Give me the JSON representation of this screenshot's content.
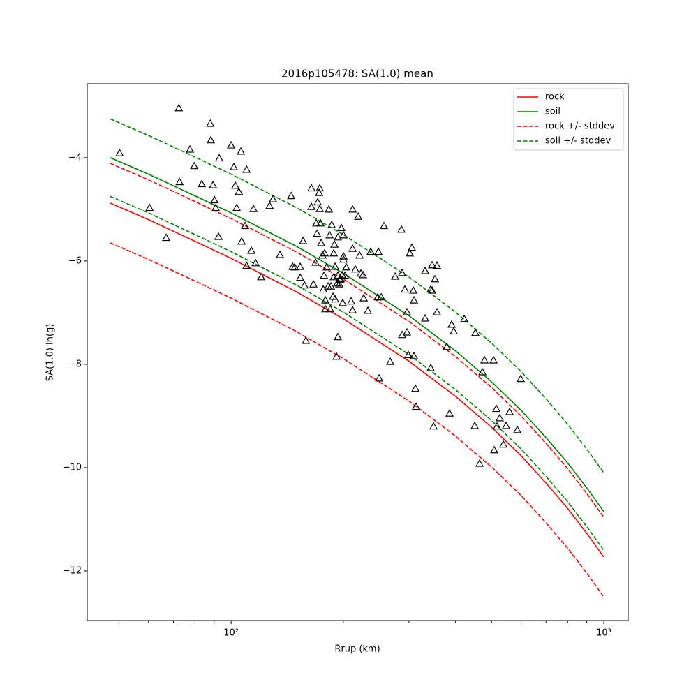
{
  "chart_data": {
    "type": "line",
    "title": "2016p105478: SA(1.0) mean",
    "xlabel": "Rrup (km)",
    "ylabel": "SA(1.0) ln(g)",
    "xscale": "log",
    "xlim": [
      41.1,
      1163
    ],
    "ylim": [
      -12.96,
      -2.57
    ],
    "xticks": [
      {
        "value": 100,
        "label": "10²"
      },
      {
        "value": 1000,
        "label": "10³"
      }
    ],
    "xminorticks": [
      50,
      60,
      70,
      80,
      90,
      200,
      300,
      400,
      500,
      600,
      700,
      800,
      900
    ],
    "yticks": [
      {
        "value": -12,
        "label": "−12"
      },
      {
        "value": -10,
        "label": "−10"
      },
      {
        "value": -8,
        "label": "−8"
      },
      {
        "value": -6,
        "label": "−6"
      },
      {
        "value": -4,
        "label": "−4"
      }
    ],
    "legend_loc": "upper right",
    "x": [
      47.4,
      60,
      80,
      100,
      150,
      200,
      300,
      400,
      500,
      600,
      700,
      800,
      900,
      1000
    ],
    "series": [
      {
        "name": "rock",
        "color": "#ff0000",
        "style": "solid",
        "values": [
          -4.88,
          -5.2,
          -5.62,
          -5.95,
          -6.6,
          -7.12,
          -7.94,
          -8.62,
          -9.22,
          -9.77,
          -10.3,
          -10.79,
          -11.27,
          -11.73
        ]
      },
      {
        "name": "soil",
        "color": "#008000",
        "style": "solid",
        "values": [
          -4.0,
          -4.32,
          -4.74,
          -5.07,
          -5.72,
          -6.24,
          -7.06,
          -7.74,
          -8.34,
          -8.89,
          -9.42,
          -9.91,
          -10.39,
          -10.85
        ]
      },
      {
        "name": "rock +/- stddev",
        "color": "#ff0000",
        "style": "dashed",
        "upper": [
          -4.11,
          -4.43,
          -4.85,
          -5.18,
          -5.83,
          -6.35,
          -7.17,
          -7.85,
          -8.45,
          -9.0,
          -9.53,
          -10.02,
          -10.5,
          -10.96
        ],
        "lower": [
          -5.65,
          -5.97,
          -6.39,
          -6.72,
          -7.37,
          -7.89,
          -8.71,
          -9.39,
          -9.99,
          -10.54,
          -11.07,
          -11.56,
          -12.04,
          -12.5
        ]
      },
      {
        "name": "soil +/- stddev",
        "color": "#008000",
        "style": "dashed",
        "upper": [
          -3.25,
          -3.57,
          -3.99,
          -4.32,
          -4.97,
          -5.49,
          -6.31,
          -6.99,
          -7.59,
          -8.14,
          -8.67,
          -9.16,
          -9.64,
          -10.1
        ],
        "lower": [
          -4.75,
          -5.07,
          -5.49,
          -5.82,
          -6.47,
          -6.99,
          -7.81,
          -8.49,
          -9.09,
          -9.64,
          -10.17,
          -10.66,
          -11.14,
          -11.6
        ]
      }
    ],
    "scatter": {
      "marker": "triangle",
      "color": "#000000",
      "x": [
        50.2,
        60.4,
        66.9,
        72.4,
        72.7,
        77.5,
        79.6,
        83.4,
        87.9,
        88.2,
        89.4,
        90.2,
        90.9,
        92.9,
        92.5,
        100,
        101.7,
        102.6,
        103.5,
        104.9,
        106.2,
        106.7,
        109.0,
        110.0,
        110.0,
        113.3,
        114.8,
        116.3,
        120.4,
        126.8,
        129.5,
        135.2,
        144.9,
        146.2,
        148.1,
        153.2,
        153.2,
        156.0,
        157.3,
        158.7,
        164.2,
        164.2,
        166.3,
        168.5,
        169.2,
        170.0,
        170.7,
        172.2,
        172.9,
        172.9,
        173.7,
        174.4,
        175.9,
        176.7,
        177.5,
        178.2,
        179.0,
        180.5,
        182.1,
        182.9,
        183.7,
        185.3,
        186.1,
        187.7,
        189.3,
        190.1,
        192.6,
        193.4,
        195.1,
        196.8,
        198.5,
        199.3,
        200.2,
        202.0,
        188.5,
        188.5,
        193.4,
        184.5,
        179.0,
        190.1,
        191.8,
        193.4,
        195.9,
        200.2,
        197.6,
        200.2,
        203.7,
        211.8,
        211.8,
        209.9,
        215.4,
        221.1,
        223.0,
        225.9,
        226.9,
        232.8,
        211.8,
        219.2,
        236.9,
        247.3,
        252.7,
        248.4,
        257.1,
        249.5,
        267.3,
        275.5,
        286.4,
        287.6,
        287.6,
        292.6,
        296.4,
        296.4,
        299.0,
        301.6,
        305.5,
        308.2,
        309.5,
        309.5,
        312.2,
        313.5,
        331.6,
        331.6,
        343.2,
        343.2,
        346.2,
        346.2,
        349.2,
        352.3,
        356.8,
        356.8,
        379.0,
        385.6,
        390.6,
        395.7,
        422.2,
        450.4,
        452.3,
        464.2,
        472.3,
        478.4,
        506.0,
        508.2,
        514.8,
        517.0,
        526.0,
        537.5,
        546.9,
        558.8,
        586.0,
        598.8
      ],
      "y": [
        -3.91,
        -4.97,
        -5.55,
        -3.04,
        -4.47,
        -3.84,
        -4.16,
        -4.51,
        -3.34,
        -3.66,
        -4.53,
        -4.82,
        -4.97,
        -4.01,
        -5.53,
        -3.76,
        -4.18,
        -4.54,
        -4.97,
        -4.66,
        -3.88,
        -5.62,
        -5.32,
        -4.23,
        -6.09,
        -5.8,
        -4.99,
        -6.04,
        -6.31,
        -4.93,
        -4.8,
        -5.88,
        -4.74,
        -6.11,
        -6.12,
        -6.11,
        -6.32,
        -5.61,
        -6.47,
        -7.54,
        -4.59,
        -4.95,
        -6.45,
        -6.03,
        -5.27,
        -5.47,
        -4.86,
        -4.68,
        -4.59,
        -4.99,
        -5.27,
        -5.65,
        -5.89,
        -6.55,
        -6.28,
        -5.85,
        -6.76,
        -6.12,
        -6.49,
        -5.0,
        -5.5,
        -6.49,
        -5.3,
        -6.69,
        -5.68,
        -6.11,
        -6.43,
        -6.28,
        -6.45,
        -6.35,
        -6.27,
        -6.81,
        -5.91,
        -6.28,
        -5.85,
        -6.31,
        -5.54,
        -6.93,
        -6.93,
        -6.74,
        -7.85,
        -7.47,
        -6.36,
        -5.5,
        -5.36,
        -5.97,
        -6.12,
        -6.95,
        -5.0,
        -6.78,
        -6.16,
        -5.89,
        -6.24,
        -6.27,
        -6.72,
        -6.96,
        -5.76,
        -5.14,
        -5.82,
        -6.7,
        -6.7,
        -5.82,
        -5.32,
        -8.27,
        -7.95,
        -6.3,
        -5.39,
        -7.43,
        -6.23,
        -6.55,
        -6.99,
        -7.38,
        -7.82,
        -5.85,
        -5.74,
        -6.57,
        -6.76,
        -7.84,
        -8.47,
        -8.82,
        -7.11,
        -6.19,
        -6.55,
        -8.07,
        -6.08,
        -6.57,
        -9.2,
        -6.35,
        -6.99,
        -6.09,
        -7.66,
        -8.95,
        -7.23,
        -7.36,
        -7.12,
        -9.19,
        -7.39,
        -9.92,
        -8.15,
        -7.92,
        -7.92,
        -9.66,
        -8.86,
        -9.2,
        -9.04,
        -9.55,
        -9.19,
        -8.92,
        -9.27,
        -8.28
      ]
    }
  }
}
